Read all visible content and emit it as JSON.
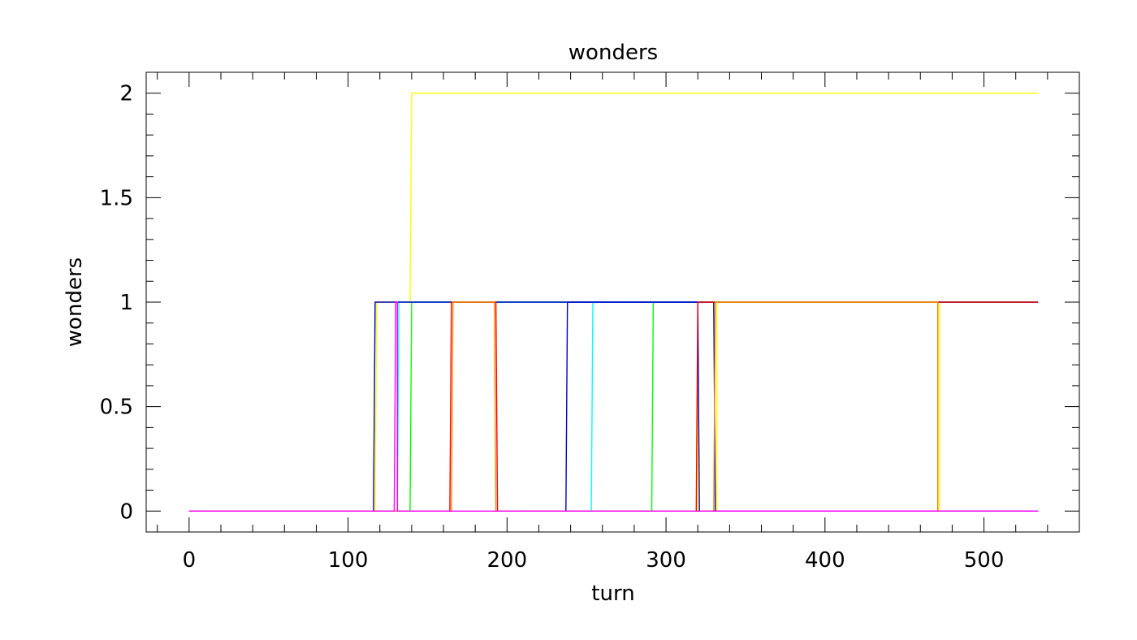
{
  "chart_data": {
    "type": "line",
    "title": "wonders",
    "xlabel": "turn",
    "ylabel": "wonders",
    "xlim": [
      -27,
      560
    ],
    "ylim": [
      -0.1,
      2.1
    ],
    "xticks": [
      0,
      100,
      200,
      300,
      400,
      500
    ],
    "xtick_labels": [
      "0",
      "100",
      "200",
      "300",
      "400",
      "500"
    ],
    "yticks": [
      0,
      0.5,
      1,
      1.5,
      2
    ],
    "ytick_labels": [
      "0",
      "0.5",
      "1",
      "1.5",
      "2"
    ],
    "grid": false,
    "legend": "none",
    "series": [
      {
        "color": "#ffff00",
        "x": [
          0,
          117,
          118,
          139,
          140,
          534
        ],
        "y": [
          0,
          0,
          1,
          1,
          2,
          2
        ]
      },
      {
        "color": "#ffff00",
        "x": [
          118,
          320,
          320,
          332,
          332,
          472,
          472,
          534
        ],
        "y": [
          1,
          1,
          0,
          0,
          1,
          1,
          0,
          0
        ]
      },
      {
        "color": "#00ff00",
        "x": [
          0,
          139,
          140,
          534
        ],
        "y": [
          0,
          0,
          1,
          1
        ]
      },
      {
        "color": "#00ff00",
        "x": [
          205,
          291,
          292,
          346,
          346,
          534
        ],
        "y": [
          0,
          0,
          1,
          1,
          1,
          1
        ]
      },
      {
        "color": "#00ffff",
        "x": [
          0,
          131,
          132,
          534
        ],
        "y": [
          0,
          0,
          1,
          1
        ]
      },
      {
        "color": "#00ffff",
        "x": [
          205,
          253,
          254,
          534
        ],
        "y": [
          0,
          0,
          1,
          1
        ]
      },
      {
        "color": "#0000cc",
        "x": [
          0,
          116,
          117,
          320,
          321,
          534
        ],
        "y": [
          0,
          0,
          1,
          1,
          0,
          0
        ]
      },
      {
        "color": "#0000cc",
        "x": [
          205,
          237,
          238,
          330,
          331,
          471,
          471,
          534
        ],
        "y": [
          0,
          0,
          1,
          1,
          0,
          0,
          1,
          1
        ]
      },
      {
        "color": "#ff0000",
        "x": [
          0,
          164,
          165,
          193,
          194,
          319,
          320,
          534
        ],
        "y": [
          0,
          0,
          1,
          1,
          0,
          0,
          1,
          1
        ]
      },
      {
        "color": "#ff8c00",
        "x": [
          0,
          165,
          166,
          192,
          193,
          237,
          237,
          330,
          331,
          471,
          471,
          534
        ],
        "y": [
          0,
          0,
          1,
          1,
          0,
          0,
          0,
          0,
          1,
          1,
          0,
          0
        ]
      },
      {
        "color": "#ff00ff",
        "x": [
          0,
          129,
          130,
          131,
          131,
          534
        ],
        "y": [
          0,
          0,
          1,
          1,
          0,
          0
        ]
      },
      {
        "color": "#ff00ff",
        "x": [
          336,
          534
        ],
        "y": [
          0,
          0
        ]
      }
    ]
  }
}
